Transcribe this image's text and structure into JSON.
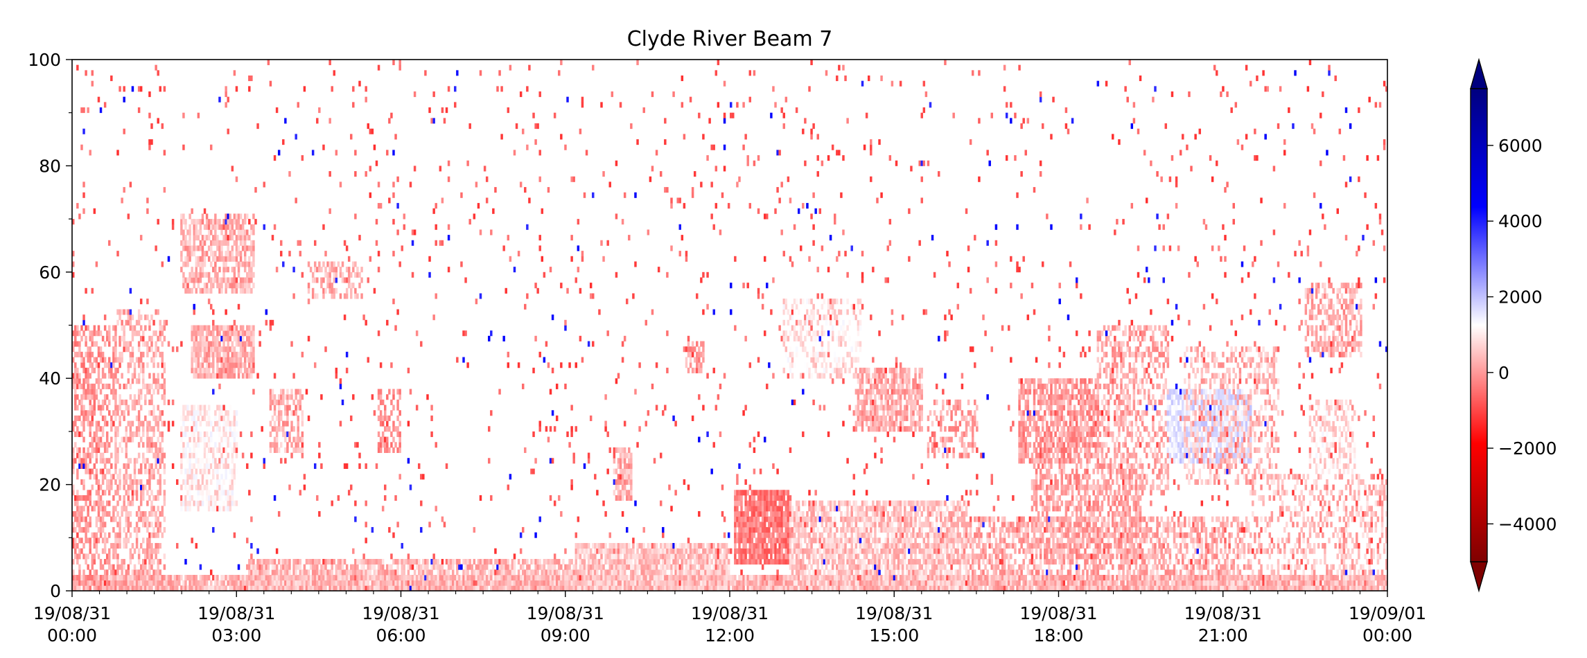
{
  "chart_data": {
    "type": "heatmap",
    "title": "Clyde River Beam 7",
    "xlabel": "",
    "ylabel": "",
    "ylim": [
      0,
      100
    ],
    "xlim": [
      "19/08/31 00:00",
      "19/09/01 00:00"
    ],
    "y_ticks": [
      0,
      20,
      40,
      60,
      80,
      100
    ],
    "x_ticks": [
      {
        "date": "19/08/31",
        "time": "00:00",
        "hour": 0
      },
      {
        "date": "19/08/31",
        "time": "03:00",
        "hour": 3
      },
      {
        "date": "19/08/31",
        "time": "06:00",
        "hour": 6
      },
      {
        "date": "19/08/31",
        "time": "09:00",
        "hour": 9
      },
      {
        "date": "19/08/31",
        "time": "12:00",
        "hour": 12
      },
      {
        "date": "19/08/31",
        "time": "15:00",
        "hour": 15
      },
      {
        "date": "19/08/31",
        "time": "18:00",
        "hour": 18
      },
      {
        "date": "19/08/31",
        "time": "21:00",
        "hour": 21
      },
      {
        "date": "19/09/01",
        "time": "00:00",
        "hour": 24
      }
    ],
    "colorbar": {
      "colormap": "seismic_r",
      "range": [
        -5000,
        7500
      ],
      "extend": "both",
      "ticks": [
        -4000,
        -2000,
        0,
        2000,
        4000,
        6000
      ],
      "tick_labels": [
        "−4000",
        "−2000",
        "0",
        "2000",
        "4000",
        "6000"
      ]
    },
    "colors": {
      "dominant": "#ff6a6a",
      "strong_negative": "#e01010",
      "light": "#ff9999",
      "positive": "#2020ff"
    },
    "grid": false,
    "regions": [
      {
        "t": [
          0.0,
          24.0
        ],
        "y": [
          0,
          3
        ],
        "value": -700,
        "density": 0.95
      },
      {
        "t": [
          3.2,
          9.2
        ],
        "y": [
          0,
          6
        ],
        "value": -700,
        "density": 0.8
      },
      {
        "t": [
          9.2,
          12.0
        ],
        "y": [
          0,
          9
        ],
        "value": -600,
        "density": 0.9
      },
      {
        "t": [
          12.1,
          13.1
        ],
        "y": [
          5,
          19
        ],
        "value": -1300,
        "density": 0.9
      },
      {
        "t": [
          13.1,
          16.3
        ],
        "y": [
          0,
          17
        ],
        "value": -600,
        "density": 0.75
      },
      {
        "t": [
          16.3,
          21.5
        ],
        "y": [
          2,
          14
        ],
        "value": -800,
        "density": 0.55
      },
      {
        "t": [
          0.0,
          0.8
        ],
        "y": [
          0,
          50
        ],
        "value": -1000,
        "density": 0.55
      },
      {
        "t": [
          0.8,
          1.7
        ],
        "y": [
          0,
          53
        ],
        "value": -800,
        "density": 0.45
      },
      {
        "t": [
          2.0,
          3.0
        ],
        "y": [
          15,
          35
        ],
        "value": -200,
        "density": 0.65
      },
      {
        "t": [
          2.2,
          3.3
        ],
        "y": [
          40,
          50
        ],
        "value": -800,
        "density": 0.85
      },
      {
        "t": [
          2.0,
          3.3
        ],
        "y": [
          56,
          71
        ],
        "value": -800,
        "density": 0.65
      },
      {
        "t": [
          3.6,
          4.2
        ],
        "y": [
          26,
          38
        ],
        "value": -800,
        "density": 0.6
      },
      {
        "t": [
          4.3,
          5.3
        ],
        "y": [
          55,
          62
        ],
        "value": -800,
        "density": 0.5
      },
      {
        "t": [
          5.6,
          6.0
        ],
        "y": [
          26,
          38
        ],
        "value": -1100,
        "density": 0.55
      },
      {
        "t": [
          9.9,
          10.2
        ],
        "y": [
          17,
          27
        ],
        "value": -800,
        "density": 0.75
      },
      {
        "t": [
          11.2,
          11.5
        ],
        "y": [
          41,
          47
        ],
        "value": -900,
        "density": 0.7
      },
      {
        "t": [
          13.0,
          14.4
        ],
        "y": [
          40,
          55
        ],
        "value": -300,
        "density": 0.45
      },
      {
        "t": [
          14.3,
          15.5
        ],
        "y": [
          30,
          42
        ],
        "value": -800,
        "density": 0.75
      },
      {
        "t": [
          15.6,
          16.5
        ],
        "y": [
          25,
          36
        ],
        "value": -900,
        "density": 0.45
      },
      {
        "t": [
          17.3,
          18.7
        ],
        "y": [
          24,
          40
        ],
        "value": -1000,
        "density": 0.75
      },
      {
        "t": [
          17.5,
          19.5
        ],
        "y": [
          6,
          24
        ],
        "value": -900,
        "density": 0.55
      },
      {
        "t": [
          18.7,
          20.0
        ],
        "y": [
          18,
          50
        ],
        "value": -800,
        "density": 0.45
      },
      {
        "t": [
          20.0,
          21.5
        ],
        "y": [
          24,
          38
        ],
        "value": 500,
        "density": 0.75
      },
      {
        "t": [
          20.3,
          22.0
        ],
        "y": [
          20,
          46
        ],
        "value": -700,
        "density": 0.4
      },
      {
        "t": [
          22.5,
          23.5
        ],
        "y": [
          44,
          58
        ],
        "value": -800,
        "density": 0.55
      },
      {
        "t": [
          22.6,
          23.4
        ],
        "y": [
          22,
          36
        ],
        "value": -300,
        "density": 0.55
      },
      {
        "t": [
          21.5,
          24.0
        ],
        "y": [
          2,
          22
        ],
        "value": -700,
        "density": 0.35
      },
      {
        "t": [
          0.0,
          24.0
        ],
        "y": [
          0,
          100
        ],
        "value": -1600,
        "density": 0.025
      },
      {
        "t": [
          0.0,
          24.0
        ],
        "y": [
          0,
          100
        ],
        "value": 3500,
        "density": 0.0035
      }
    ]
  }
}
